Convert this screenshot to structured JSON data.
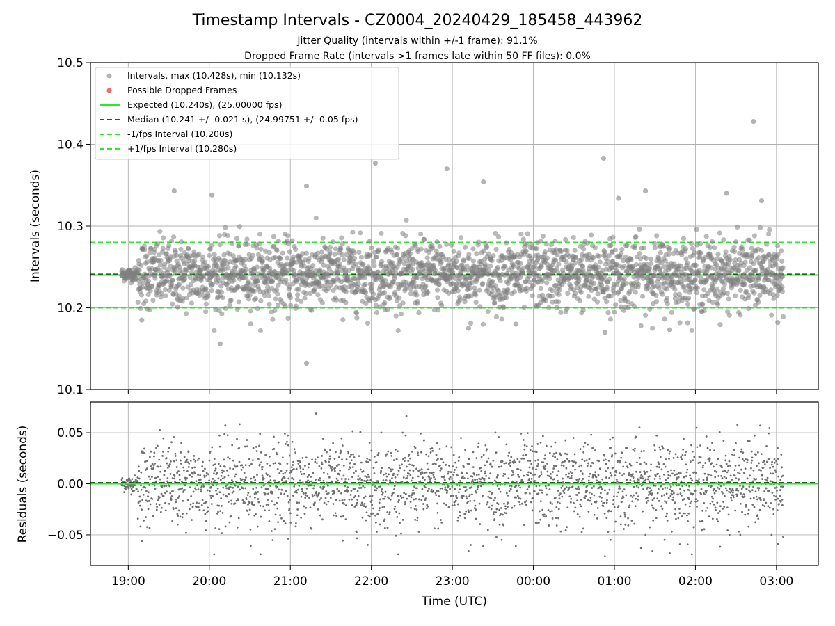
{
  "chart_data": [
    {
      "type": "scatter",
      "title": "Timestamp Intervals - CZ0004_20240429_185458_443962",
      "subtitles": [
        "Jitter Quality (intervals within +/-1 frame): 91.1%",
        "Dropped Frame Rate (intervals >1 frames late within 50 FF files): 0.0%"
      ],
      "ylabel": "Intervals (seconds)",
      "ylim": [
        10.1,
        10.5
      ],
      "yticks": [
        "10.1",
        "10.2",
        "10.3",
        "10.4",
        "10.5"
      ],
      "ytick_values": [
        10.1,
        10.2,
        10.3,
        10.4,
        10.5
      ],
      "grid": true,
      "legend_position": "top-left",
      "legend": [
        "Intervals, max (10.428s), min (10.132s)",
        "Possible Dropped Frames",
        "Expected (10.240s), (25.00000 fps)",
        "Median (10.241 +/- 0.021 s), (24.99751 +/- 0.05 fps)",
        "-1/fps Interval (10.200s)",
        "+1/fps Interval (10.280s)"
      ],
      "series": [
        {
          "name": "Intervals, max (10.428s), min (10.132s)",
          "color": "#808080",
          "style": "marker",
          "n_points": 2500,
          "max": 10.428,
          "min": 10.132,
          "median": 10.241,
          "std": 0.021,
          "outliers": [
            {
              "x": "02:43",
              "y": 10.428
            },
            {
              "x": "00:52",
              "y": 10.383
            },
            {
              "x": "21:12",
              "y": 10.132
            },
            {
              "x": "20:08",
              "y": 10.156
            },
            {
              "x": "22:03",
              "y": 10.377
            },
            {
              "x": "22:56",
              "y": 10.37
            },
            {
              "x": "23:23",
              "y": 10.354
            },
            {
              "x": "19:34",
              "y": 10.343
            },
            {
              "x": "21:12",
              "y": 10.349
            },
            {
              "x": "20:02",
              "y": 10.338
            },
            {
              "x": "01:23",
              "y": 10.343
            },
            {
              "x": "02:23",
              "y": 10.34
            },
            {
              "x": "02:49",
              "y": 10.331
            },
            {
              "x": "01:03",
              "y": 10.334
            },
            {
              "x": "00:53",
              "y": 10.17
            },
            {
              "x": "01:41",
              "y": 10.173
            },
            {
              "x": "23:12",
              "y": 10.175
            },
            {
              "x": "03:01",
              "y": 10.182
            },
            {
              "x": "19:10",
              "y": 10.185
            },
            {
              "x": "23:47",
              "y": 10.18
            }
          ]
        },
        {
          "name": "Possible Dropped Frames",
          "color": "#ff6666",
          "style": "marker",
          "points": []
        },
        {
          "name": "Expected (10.240s), (25.00000 fps)",
          "color": "#22ee22",
          "style": "solid",
          "y": 10.24
        },
        {
          "name": "Median (10.241 +/- 0.021 s), (24.99751 +/- 0.05 fps)",
          "color": "#116611",
          "style": "dashed",
          "y": 10.241
        },
        {
          "name": "-1/fps Interval (10.200s)",
          "color": "#22ee22",
          "style": "dashed",
          "y": 10.2
        },
        {
          "name": "+1/fps Interval (10.280s)",
          "color": "#22ee22",
          "style": "dashed",
          "y": 10.28
        }
      ]
    },
    {
      "type": "scatter",
      "ylabel": "Residuals (seconds)",
      "xlabel": "Time (UTC)",
      "ylim": [
        -0.08,
        0.08
      ],
      "yticks": [
        "−0.05",
        "0.00",
        "0.05"
      ],
      "ytick_values": [
        -0.05,
        0.0,
        0.05
      ],
      "xlim": [
        "18:32",
        "03:31"
      ],
      "xticks": [
        "19:00",
        "20:00",
        "21:00",
        "22:00",
        "23:00",
        "00:00",
        "01:00",
        "02:00",
        "03:00"
      ],
      "time_range": [
        "18:55",
        "03:05"
      ],
      "grid": true,
      "series": [
        {
          "name": "Residuals",
          "color": "#707070",
          "style": "marker",
          "n_points": 2500,
          "std": 0.021,
          "max": 0.077,
          "min": -0.07
        },
        {
          "name": "Zero",
          "color": "#22ee22",
          "style": "solid",
          "y": 0.0
        },
        {
          "name": "Median offset",
          "color": "#116611",
          "style": "dashed",
          "y": 0.001
        }
      ]
    }
  ]
}
